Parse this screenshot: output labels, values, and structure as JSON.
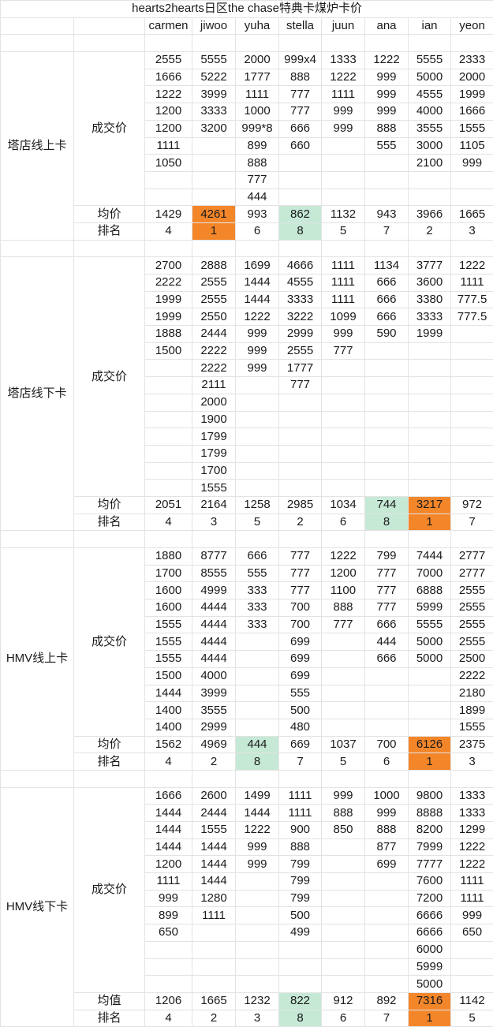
{
  "title": "hearts2hearts日区the chase特典卡煤炉卡价",
  "members": [
    "carmen",
    "jiwoo",
    "yuha",
    "stella",
    "juun",
    "ana",
    "ian",
    "yeon"
  ],
  "colors": {
    "rank_first": "#f4862a",
    "rank_last": "#c6e9d6",
    "grid": "#e3e3e3"
  },
  "sections": [
    {
      "label": "塔店线上卡",
      "price_label": "成交价",
      "avg_label": "均价",
      "rank_label": "排名",
      "prices": [
        [
          "2555",
          "1666",
          "1222",
          "1200",
          "1200",
          "1111",
          "1050"
        ],
        [
          "5555",
          "5222",
          "3999",
          "3333",
          "3200"
        ],
        [
          "2000",
          "1777",
          "1111",
          "1000",
          "999*8",
          "899",
          "888",
          "777",
          "444"
        ],
        [
          "999x4",
          "888",
          "777",
          "777",
          "666",
          "660"
        ],
        [
          "1333",
          "1222",
          "1111",
          "999",
          "999"
        ],
        [
          "1222",
          "999",
          "999",
          "999",
          "888",
          "555"
        ],
        [
          "5555",
          "5000",
          "4555",
          "4000",
          "3555",
          "3000",
          "2100"
        ],
        [
          "2333",
          "2000",
          "1999",
          "1666",
          "1555",
          "1105",
          "999"
        ]
      ],
      "avg": [
        "1429",
        "4261",
        "993",
        "862",
        "1132",
        "943",
        "3966",
        "1665"
      ],
      "rank": [
        "4",
        "1",
        "6",
        "8",
        "5",
        "7",
        "2",
        "3"
      ]
    },
    {
      "label": "塔店线下卡",
      "price_label": "成交价",
      "avg_label": "均价",
      "rank_label": "排名",
      "prices": [
        [
          "2700",
          "2222",
          "1999",
          "1999",
          "1888",
          "1500"
        ],
        [
          "2888",
          "2555",
          "2555",
          "2550",
          "2444",
          "2222",
          "2222",
          "2111",
          "2000",
          "1900",
          "1799",
          "1799",
          "1700",
          "1555"
        ],
        [
          "1699",
          "1444",
          "1444",
          "1222",
          "999",
          "999",
          "999"
        ],
        [
          "4666",
          "4555",
          "3333",
          "3222",
          "2999",
          "2555",
          "1777",
          "777"
        ],
        [
          "1111",
          "1111",
          "1111",
          "1099",
          "999",
          "777"
        ],
        [
          "1134",
          "666",
          "666",
          "666",
          "590"
        ],
        [
          "3777",
          "3600",
          "3380",
          "3333",
          "1999"
        ],
        [
          "1222",
          "1111",
          "777.5",
          "777.5"
        ]
      ],
      "avg": [
        "2051",
        "2164",
        "1258",
        "2985",
        "1034",
        "744",
        "3217",
        "972"
      ],
      "rank": [
        "4",
        "3",
        "5",
        "2",
        "6",
        "8",
        "1",
        "7"
      ]
    },
    {
      "label": "HMV线上卡",
      "price_label": "成交价",
      "avg_label": "均价",
      "rank_label": "排名",
      "prices": [
        [
          "1880",
          "1700",
          "1600",
          "1600",
          "1555",
          "1555",
          "1555",
          "1500",
          "1444",
          "1400",
          "1400"
        ],
        [
          "8777",
          "8555",
          "4999",
          "4444",
          "4444",
          "4444",
          "4444",
          "4000",
          "3999",
          "3555",
          "2999"
        ],
        [
          "666",
          "555",
          "333",
          "333",
          "333"
        ],
        [
          "777",
          "777",
          "777",
          "700",
          "700",
          "699",
          "699",
          "699",
          "555",
          "500",
          "480"
        ],
        [
          "1222",
          "1200",
          "1100",
          "888",
          "777"
        ],
        [
          "799",
          "777",
          "777",
          "777",
          "666",
          "444",
          "666"
        ],
        [
          "7444",
          "7000",
          "6888",
          "5999",
          "5555",
          "5000",
          "5000"
        ],
        [
          "2777",
          "2777",
          "2555",
          "2555",
          "2555",
          "2555",
          "2500",
          "2222",
          "2180",
          "1899",
          "1555"
        ]
      ],
      "avg": [
        "1562",
        "4969",
        "444",
        "669",
        "1037",
        "700",
        "6126",
        "2375"
      ],
      "rank": [
        "4",
        "2",
        "8",
        "7",
        "5",
        "6",
        "1",
        "3"
      ]
    },
    {
      "label": "HMV线下卡",
      "price_label": "成交价",
      "avg_label": "均值",
      "rank_label": "排名",
      "prices": [
        [
          "1666",
          "1444",
          "1444",
          "1444",
          "1200",
          "1111",
          "999",
          "899",
          "650"
        ],
        [
          "2600",
          "2444",
          "1555",
          "1444",
          "1444",
          "1444",
          "1280",
          "1111"
        ],
        [
          "1499",
          "1444",
          "1222",
          "999",
          "999"
        ],
        [
          "1111",
          "1111",
          "900",
          "888",
          "799",
          "799",
          "799",
          "500",
          "499"
        ],
        [
          "999",
          "888",
          "850"
        ],
        [
          "1000",
          "999",
          "888",
          "877",
          "699"
        ],
        [
          "9800",
          "8888",
          "8200",
          "7999",
          "7777",
          "7600",
          "7200",
          "6666",
          "6666",
          "6000",
          "5999",
          "5000"
        ],
        [
          "1333",
          "1333",
          "1299",
          "1222",
          "1222",
          "1111",
          "1111",
          "999",
          "650"
        ]
      ],
      "avg": [
        "1206",
        "1665",
        "1232",
        "822",
        "912",
        "892",
        "7316",
        "1142"
      ],
      "rank": [
        "4",
        "2",
        "3",
        "8",
        "6",
        "7",
        "1",
        "5"
      ]
    }
  ]
}
